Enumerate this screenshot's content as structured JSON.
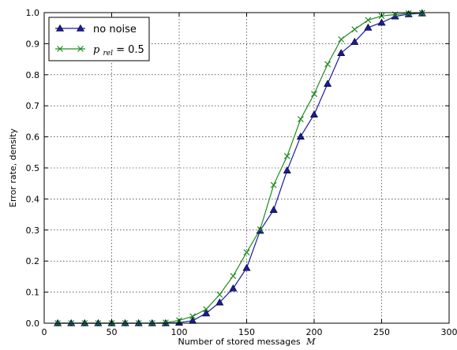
{
  "chart_data": {
    "type": "line",
    "xlabel": "Number of stored messages",
    "xlabel_var": "M",
    "ylabel": "Error rate, density",
    "xlim": [
      0,
      300
    ],
    "ylim": [
      0,
      1.0
    ],
    "xticks": [
      "0",
      "50",
      "100",
      "150",
      "200",
      "250",
      "300"
    ],
    "yticks": [
      "0.0",
      "0.1",
      "0.2",
      "0.3",
      "0.4",
      "0.5",
      "0.6",
      "0.7",
      "0.8",
      "0.9",
      "1.0"
    ],
    "grid": true,
    "legend_position": "top-left",
    "x": [
      10,
      20,
      30,
      40,
      50,
      60,
      70,
      80,
      90,
      100,
      110,
      120,
      130,
      140,
      150,
      160,
      170,
      180,
      190,
      200,
      210,
      220,
      230,
      240,
      250,
      260,
      270,
      280
    ],
    "series": [
      {
        "name": "no noise",
        "marker": "triangle",
        "color": "#1a1aa6",
        "values": [
          0,
          0,
          0,
          0,
          0,
          0,
          0,
          0,
          0,
          0.002,
          0.008,
          0.032,
          0.067,
          0.112,
          0.178,
          0.298,
          0.365,
          0.492,
          0.601,
          0.672,
          0.771,
          0.87,
          0.906,
          0.952,
          0.968,
          0.988,
          0.995,
          0.998
        ]
      },
      {
        "name": "p_rel = 0.5",
        "legend_var": "p",
        "legend_sub": "rel",
        "legend_rest": " = 0.5",
        "marker": "x",
        "color": "#1f8c1f",
        "values": [
          0,
          0,
          0,
          0,
          0,
          0,
          0,
          0,
          0.002,
          0.009,
          0.022,
          0.045,
          0.092,
          0.152,
          0.228,
          0.302,
          0.445,
          0.538,
          0.657,
          0.738,
          0.834,
          0.914,
          0.946,
          0.976,
          0.989,
          0.994,
          0.998,
          0.999
        ]
      }
    ]
  }
}
